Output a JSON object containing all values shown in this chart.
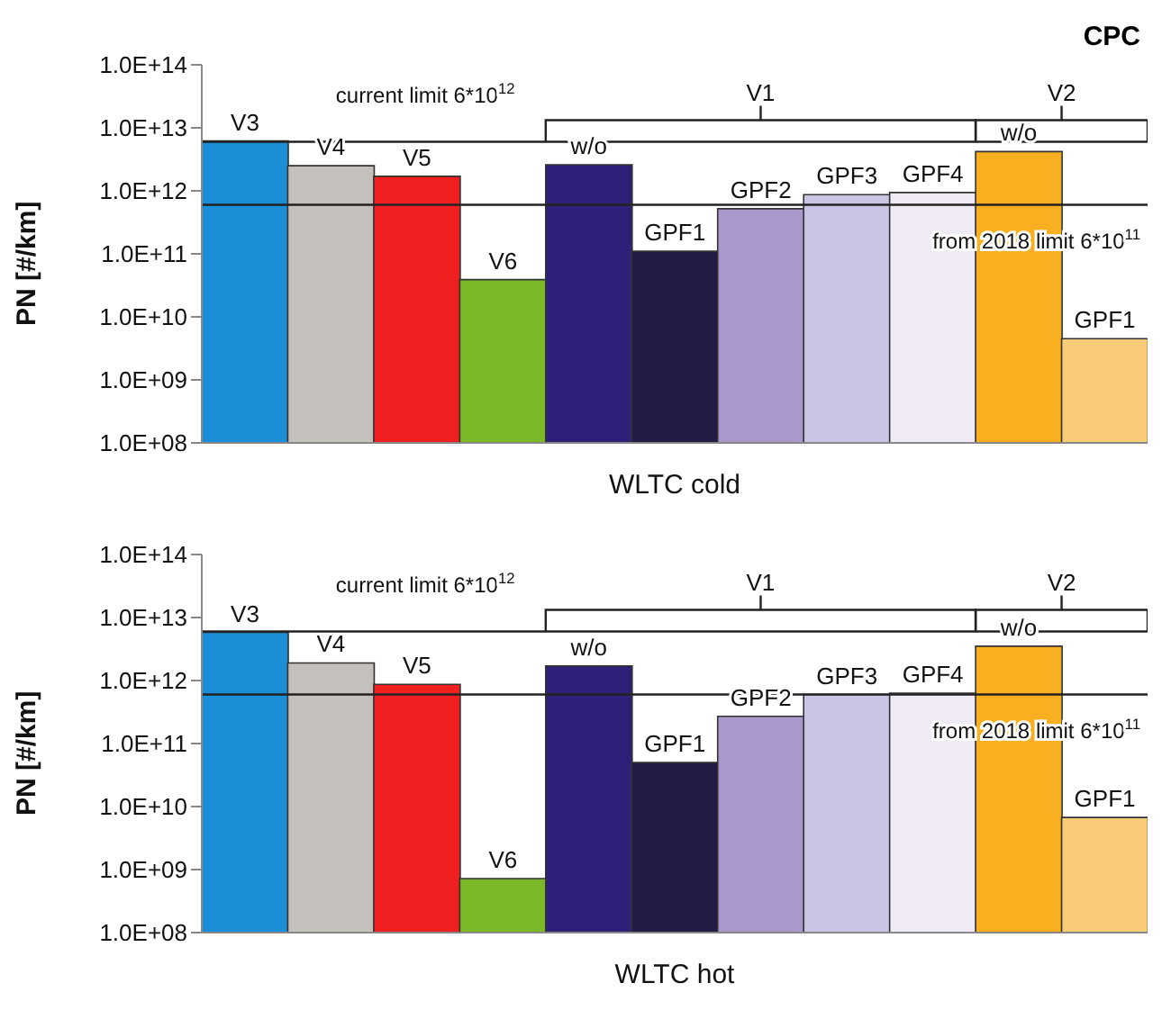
{
  "chart_data": [
    {
      "type": "bar",
      "title": "CPC",
      "xlabel": "WLTC cold",
      "ylabel": "PN [#/km]",
      "log": true,
      "relative": false,
      "categories": [
        "V3",
        "V4",
        "V5",
        "V6",
        "w/o",
        "GPF1",
        "GPF2",
        "GPF3",
        "GPF4",
        "w/o",
        "GPF1"
      ],
      "values": [
        6200000000000.0,
        2500000000000.0,
        1700000000000.0,
        39000000000.0,
        2600000000000.0,
        110000000000.0,
        520000000000.0,
        870000000000.0,
        940000000000.0,
        4200000000000.0,
        4500000000.0
      ],
      "colors": [
        "#1a8fd8",
        "#c4c0bc",
        "#f02020",
        "#7ab828",
        "#2e1f78",
        "#231a45",
        "#a898cc",
        "#ccc4e4",
        "#f0eaf6",
        "#f8b020",
        "#f8cc78"
      ],
      "ylim": [
        100000000.0,
        100000000000000.0
      ],
      "yticks": [
        {
          "value": 100000000.0,
          "label": "1.0E+08"
        },
        {
          "value": 1000000000.0,
          "label": "1.0E+09"
        },
        {
          "value": 10000000000.0,
          "label": "1.0E+10"
        },
        {
          "value": 100000000000.0,
          "label": "1.0E+11"
        },
        {
          "value": 1000000000000.0,
          "label": "1.0E+12"
        },
        {
          "value": 10000000000000.0,
          "label": "1.0E+13"
        },
        {
          "value": 100000000000000.0,
          "label": "1.0E+14"
        }
      ],
      "ref_lines": [
        {
          "axis": "y",
          "value": 6000000000000.0,
          "label": "current limit 6*10$^{12}$",
          "color": "#222222"
        },
        {
          "axis": "y",
          "value": 600000000000.0,
          "label": "from 2018 limit 6*10$^{11}$",
          "color": "#222222"
        }
      ],
      "annotations": [
        {
          "text": "V1",
          "y": 6000000000000.0
        },
        {
          "text": "V2",
          "y": 6000000000000.0
        }
      ],
      "grid": false,
      "legend": false
    },
    {
      "type": "bar",
      "xlabel": "WLTC hot",
      "ylabel": "PN [#/km]",
      "log": true,
      "relative": false,
      "categories": [
        "V3",
        "V4",
        "V5",
        "V6",
        "w/o",
        "GPF1",
        "GPF2",
        "GPF3",
        "GPF4",
        "w/o",
        "GPF1"
      ],
      "values": [
        5800000000000.0,
        1900000000000.0,
        870000000000.0,
        720000000.0,
        1700000000000.0,
        50000000000.0,
        270000000000.0,
        600000000000.0,
        630000000000.0,
        3500000000000.0,
        6700000000.0
      ],
      "colors": [
        "#1a8fd8",
        "#c4c0bc",
        "#f02020",
        "#7ab828",
        "#2e1f78",
        "#231a45",
        "#a898cc",
        "#ccc4e4",
        "#f0eaf6",
        "#f8b020",
        "#f8cc78"
      ],
      "ylim": [
        100000000.0,
        100000000000000.0
      ],
      "yticks": [
        {
          "value": 100000000.0,
          "label": "1.0E+08"
        },
        {
          "value": 1000000000.0,
          "label": "1.0E+09"
        },
        {
          "value": 10000000000.0,
          "label": "1.0E+10"
        },
        {
          "value": 100000000000.0,
          "label": "1.0E+11"
        },
        {
          "value": 1000000000000.0,
          "label": "1.0E+12"
        },
        {
          "value": 10000000000000.0,
          "label": "1.0E+13"
        },
        {
          "value": 100000000000000.0,
          "label": "1.0E+14"
        }
      ],
      "ref_lines": [
        {
          "axis": "y",
          "value": 6000000000000.0,
          "label": "current limit 6*10$^{12}$",
          "color": "#222222"
        },
        {
          "axis": "y",
          "value": 600000000000.0,
          "label": "from 2018 limit 6*10$^{11}$",
          "color": "#222222"
        }
      ],
      "annotations": [
        {
          "text": "V1",
          "y": 6000000000000.0
        },
        {
          "text": "V2",
          "y": 6000000000000.0
        }
      ],
      "grid": false,
      "legend": false
    }
  ]
}
